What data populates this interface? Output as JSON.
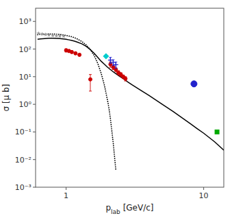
{
  "chart_data": {
    "type": "scatter",
    "log": true,
    "xlabel": "plab [GeV/c]",
    "ylabel": "σ [μ b]",
    "xlim": [
      0.6,
      14
    ],
    "ylim": [
      0.001,
      3000
    ],
    "xticks": [
      1,
      10
    ],
    "yticks": [
      {
        "value": 0.001,
        "label": "10⁻³"
      },
      {
        "value": 0.01,
        "label": "10⁻²"
      },
      {
        "value": 0.1,
        "label": "10⁻¹"
      },
      {
        "value": 1,
        "label": "10⁰"
      },
      {
        "value": 10,
        "label": "10¹"
      },
      {
        "value": 100,
        "label": "10²"
      },
      {
        "value": 1000,
        "label": "10³"
      }
    ],
    "grid": false,
    "series": [
      {
        "type": "line",
        "line_style": "solid",
        "color": "#000000",
        "x": [
          0.62,
          0.65,
          0.7,
          0.75,
          0.8,
          0.85,
          0.9,
          0.95,
          1.0,
          1.05,
          1.1,
          1.15,
          1.2,
          1.3,
          1.4,
          1.5,
          1.6,
          1.7,
          1.8,
          1.9,
          2.0,
          2.2,
          2.4,
          2.6,
          2.8,
          3.0,
          3.5,
          4.0,
          5.0,
          6.0,
          7.0,
          8.0,
          9.0,
          10.0,
          12.0,
          14.0
        ],
        "values": [
          225,
          232,
          240,
          245,
          245,
          242,
          238,
          232,
          225,
          215,
          205,
          193,
          180,
          155,
          125,
          95,
          70,
          50,
          36,
          28,
          22,
          15,
          11,
          8.5,
          6.5,
          5.2,
          3.2,
          2.1,
          1.0,
          0.55,
          0.32,
          0.2,
          0.13,
          0.09,
          0.044,
          0.022
        ]
      },
      {
        "type": "line",
        "line_style": "dotted",
        "color": "#000000",
        "x": [
          0.62,
          0.65,
          0.7,
          0.75,
          0.8,
          0.85,
          0.9,
          0.95,
          1.0,
          1.05,
          1.1,
          1.15,
          1.2,
          1.3,
          1.4,
          1.5,
          1.6,
          1.7,
          1.8,
          1.9,
          2.0,
          2.05,
          2.1,
          2.2,
          2.3
        ],
        "values": [
          330,
          340,
          348,
          352,
          350,
          345,
          336,
          325,
          310,
          295,
          278,
          258,
          235,
          188,
          140,
          95,
          58,
          30,
          13,
          4.8,
          1.4,
          0.7,
          0.3,
          0.04,
          0.004
        ]
      },
      {
        "type": "scatter",
        "marker": "star",
        "color": "#999999",
        "x": [
          0.63,
          0.67,
          0.71,
          0.75,
          0.8,
          0.85,
          0.9,
          0.96
        ],
        "values": [
          370,
          350,
          335,
          320,
          308,
          300,
          295,
          290
        ]
      },
      {
        "type": "scatter",
        "marker": "circle",
        "color": "#cc0000",
        "x": [
          1.0,
          1.05,
          1.1,
          1.17,
          1.25,
          1.5,
          2.1,
          2.2,
          2.3,
          2.4,
          2.5,
          2.6,
          2.7
        ],
        "values": [
          90,
          85,
          78,
          70,
          62,
          8,
          28,
          22,
          18,
          14,
          12,
          10,
          8.5
        ],
        "error_low": [
          12,
          10,
          8,
          7,
          6,
          5,
          6,
          4,
          3,
          2.5,
          2,
          1.5,
          1.5
        ],
        "error_high": [
          12,
          10,
          8,
          7,
          6,
          4,
          6,
          4,
          3,
          2.5,
          2,
          1.5,
          1.5
        ]
      },
      {
        "type": "scatter",
        "marker": "diamond",
        "color": "#00cccc",
        "x": [
          1.95
        ],
        "values": [
          55
        ]
      },
      {
        "type": "scatter",
        "marker": "plus",
        "color": "#2222cc",
        "x": [
          2.1,
          2.2,
          2.3
        ],
        "values": [
          40,
          33,
          27
        ],
        "error_low": [
          10,
          8,
          7
        ],
        "error_high": [
          10,
          8,
          7
        ]
      },
      {
        "type": "scatter",
        "marker": "circle",
        "color": "#2222cc",
        "x": [
          8.5
        ],
        "values": [
          5.5
        ],
        "error_low": [
          1.2
        ],
        "error_high": [
          1.2
        ]
      },
      {
        "type": "scatter",
        "marker": "square",
        "color": "#00aa00",
        "x": [
          12.5
        ],
        "values": [
          0.1
        ]
      }
    ]
  }
}
